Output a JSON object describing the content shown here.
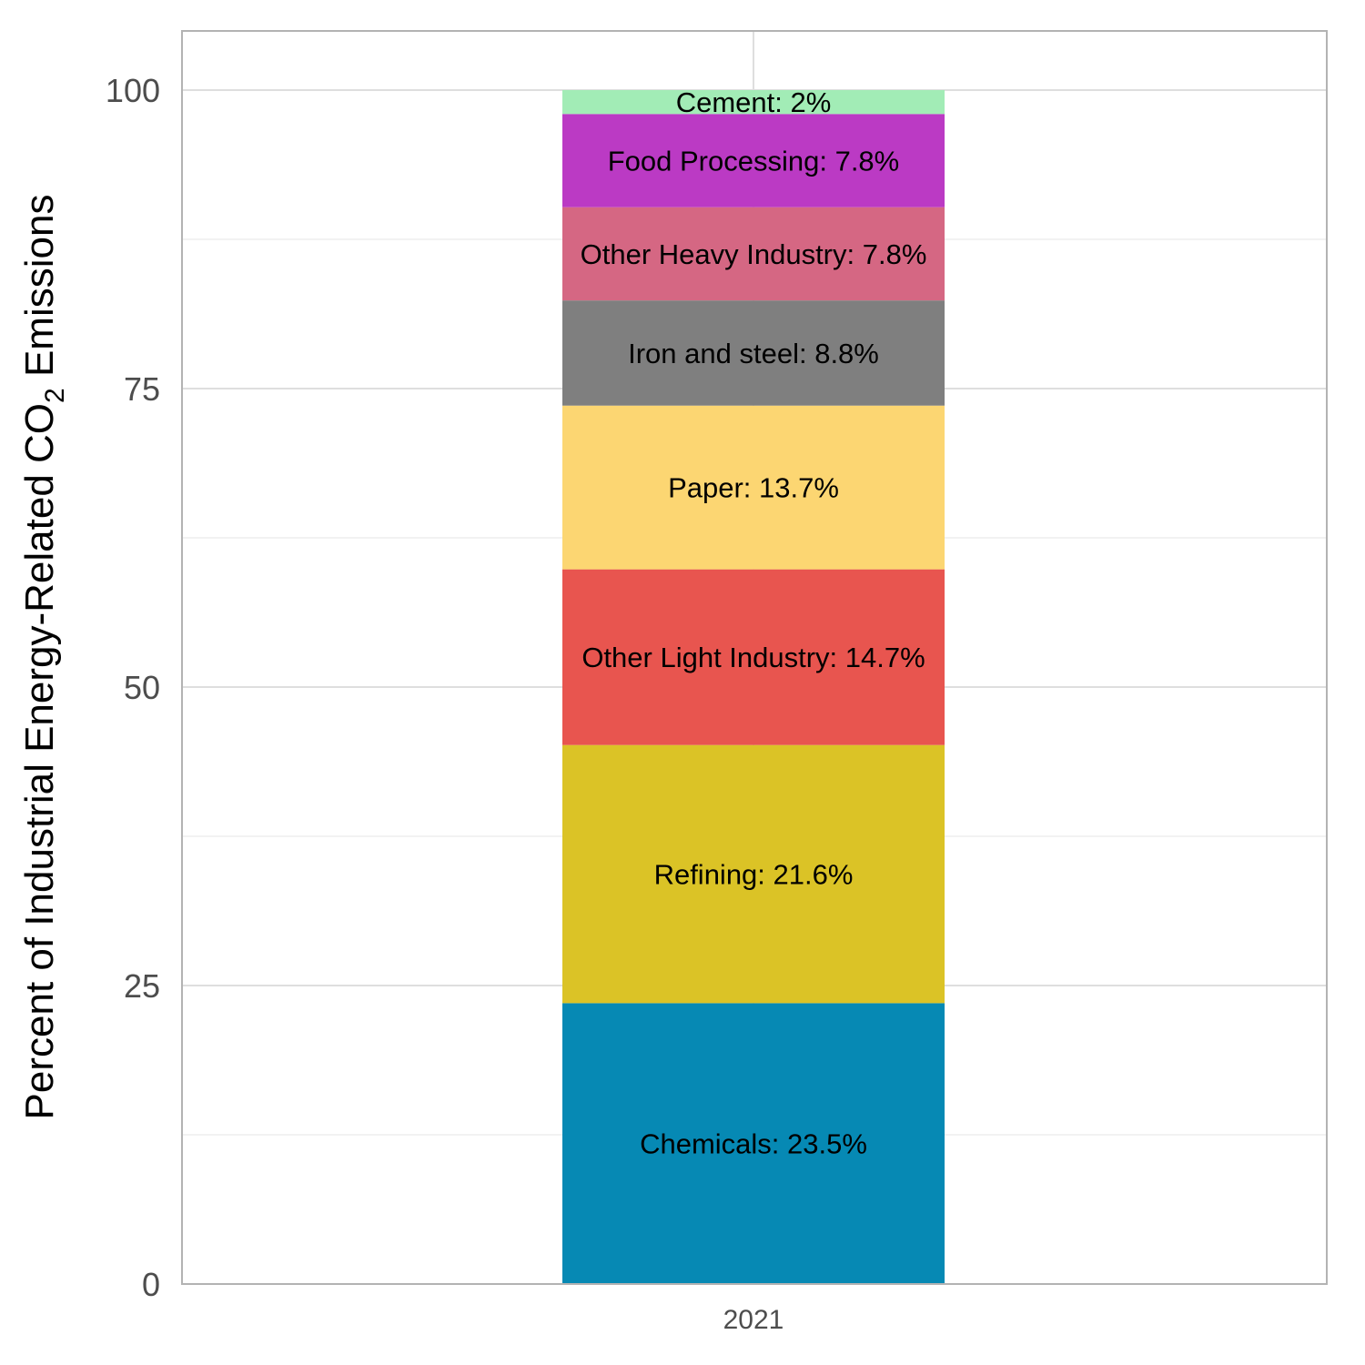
{
  "chart_data": {
    "type": "bar",
    "stacked": true,
    "categories": [
      "2021"
    ],
    "ylabel": {
      "prefix": "Percent of Industrial Energy-Related CO",
      "subscript": "2",
      "suffix": " Emissions"
    },
    "xlabel": "",
    "ylim": [
      0,
      105
    ],
    "yticks": [
      0,
      25,
      50,
      75,
      100
    ],
    "grid": true,
    "series": [
      {
        "name": "Chemicals",
        "value": 23.5,
        "label": "Chemicals: 23.5%",
        "color": "#0689b4"
      },
      {
        "name": "Refining",
        "value": 21.6,
        "label": "Refining: 21.6%",
        "color": "#dbc326"
      },
      {
        "name": "Other Light Industry",
        "value": 14.7,
        "label": "Other Light Industry: 14.7%",
        "color": "#e8554f"
      },
      {
        "name": "Paper",
        "value": 13.7,
        "label": "Paper: 13.7%",
        "color": "#fcd672"
      },
      {
        "name": "Iron and steel",
        "value": 8.8,
        "label": "Iron and steel: 8.8%",
        "color": "#7f7f7f"
      },
      {
        "name": "Other Heavy Industry",
        "value": 7.8,
        "label": "Other Heavy Industry: 7.8%",
        "color": "#d56783"
      },
      {
        "name": "Food Processing",
        "value": 7.8,
        "label": "Food Processing: 7.8%",
        "color": "#bb3ac4"
      },
      {
        "name": "Cement",
        "value": 2,
        "label": "Cement: 2%",
        "color": "#a2ecb6"
      }
    ]
  }
}
